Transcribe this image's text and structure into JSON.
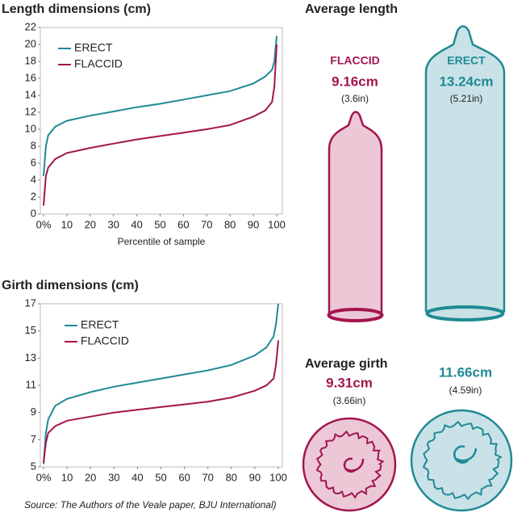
{
  "chart_data": [
    {
      "type": "line",
      "title": "Length dimensions (cm)",
      "x_label": "Percentile of sample",
      "x": [
        0,
        1,
        2,
        5,
        10,
        20,
        30,
        40,
        50,
        60,
        70,
        80,
        90,
        95,
        98,
        99,
        100
      ],
      "series": [
        {
          "name": "ERECT",
          "color": "#1f8a94",
          "values": [
            4.5,
            8,
            9.3,
            10.3,
            11,
            11.6,
            12.1,
            12.6,
            13.0,
            13.5,
            14.0,
            14.5,
            15.4,
            16.2,
            17.0,
            18,
            21
          ]
        },
        {
          "name": "FLACCID",
          "color": "#a3154e",
          "values": [
            1,
            4.5,
            5.5,
            6.5,
            7.2,
            7.8,
            8.3,
            8.8,
            9.2,
            9.6,
            10.0,
            10.5,
            11.5,
            12.2,
            13.2,
            15,
            20
          ]
        }
      ],
      "xlim": [
        0,
        100
      ],
      "xticks": [
        {
          "value": 0,
          "label": "0%"
        },
        10,
        20,
        30,
        40,
        50,
        60,
        70,
        80,
        90,
        100
      ],
      "ylim": [
        0,
        22
      ],
      "yticks": [
        0,
        2,
        4,
        6,
        8,
        10,
        12,
        14,
        16,
        18,
        20,
        22
      ]
    },
    {
      "type": "line",
      "title": "Girth dimensions (cm)",
      "x": [
        0,
        1,
        2,
        5,
        10,
        20,
        30,
        40,
        50,
        60,
        70,
        80,
        90,
        95,
        98,
        99,
        100
      ],
      "series": [
        {
          "name": "ERECT",
          "color": "#1f8a94",
          "values": [
            5.2,
            7.5,
            8.5,
            9.5,
            10,
            10.5,
            10.9,
            11.2,
            11.5,
            11.8,
            12.1,
            12.5,
            13.2,
            13.8,
            14.6,
            15.5,
            17
          ]
        },
        {
          "name": "FLACCID",
          "color": "#a3154e",
          "values": [
            5.3,
            6.8,
            7.5,
            8.0,
            8.4,
            8.7,
            9.0,
            9.2,
            9.4,
            9.6,
            9.8,
            10.1,
            10.6,
            11,
            11.5,
            12.5,
            14.3
          ]
        }
      ],
      "xlim": [
        0,
        100
      ],
      "xticks": [
        {
          "value": 0,
          "label": "0%"
        },
        10,
        20,
        30,
        40,
        50,
        60,
        70,
        80,
        90,
        100
      ],
      "ylim": [
        5,
        17
      ],
      "yticks": [
        5,
        7,
        9,
        11,
        13,
        15,
        17
      ]
    }
  ],
  "average_length": {
    "title": "Average length",
    "flaccid": {
      "label": "FLACCID",
      "value": "9.16cm",
      "inches": "(3.6in)"
    },
    "erect": {
      "label": "ERECT",
      "value": "13.24cm",
      "inches": "(5.21in)"
    }
  },
  "average_girth": {
    "title": "Average girth",
    "flaccid": {
      "value": "9.31cm",
      "inches": "(3.66in)"
    },
    "erect": {
      "value": "11.66cm",
      "inches": "(4.59in)"
    }
  },
  "source": "Source: The Authors of the Veale paper, BJU International)"
}
